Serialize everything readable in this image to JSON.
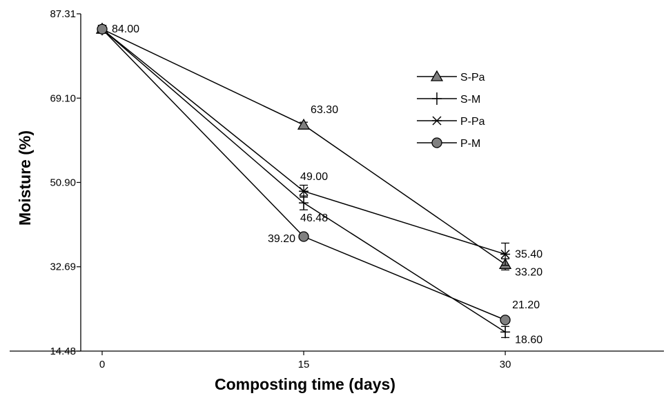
{
  "chart_data": {
    "type": "line",
    "title": "",
    "xlabel": "Composting time (days)",
    "ylabel": "Moisture (%)",
    "x": [
      0,
      15,
      30
    ],
    "x_ticks": [
      "0",
      "15",
      "30"
    ],
    "xlim": [
      -3,
      45
    ],
    "ylim": [
      14.48,
      87.31
    ],
    "y_ticks": [
      "14.48",
      "32.69",
      "50.90",
      "69.10",
      "87.31"
    ],
    "y_tick_values": [
      14.48,
      32.69,
      50.9,
      69.1,
      87.31
    ],
    "grid": false,
    "legend_position": "top-right",
    "series": [
      {
        "name": "S-Pa",
        "marker": "triangle",
        "values": [
          84.0,
          63.3,
          33.2
        ],
        "errors": [
          0.6,
          0.6,
          1.2
        ]
      },
      {
        "name": "S-M",
        "marker": "plus",
        "values": [
          84.0,
          46.48,
          18.6
        ],
        "errors": [
          0.6,
          1.5,
          1.2
        ]
      },
      {
        "name": "P-Pa",
        "marker": "asterisk",
        "values": [
          84.0,
          49.0,
          35.4
        ],
        "errors": [
          0.6,
          1.3,
          2.4
        ]
      },
      {
        "name": "P-M",
        "marker": "circle",
        "values": [
          84.0,
          39.2,
          21.2
        ],
        "errors": [
          0.6,
          0.6,
          0.6
        ]
      }
    ],
    "data_labels": [
      {
        "text": "84.00",
        "x": 0,
        "y": 84.0,
        "anchor": "right"
      },
      {
        "text": "63.30",
        "x": 15,
        "y": 63.3,
        "anchor": "upper-right"
      },
      {
        "text": "49.00",
        "x": 15,
        "y": 49.0,
        "anchor": "above"
      },
      {
        "text": "46.48",
        "x": 15,
        "y": 46.48,
        "anchor": "below"
      },
      {
        "text": "39.20",
        "x": 15,
        "y": 39.2,
        "anchor": "left"
      },
      {
        "text": "35.40",
        "x": 30,
        "y": 35.4,
        "anchor": "right"
      },
      {
        "text": "33.20",
        "x": 30,
        "y": 33.2,
        "anchor": "lower-right"
      },
      {
        "text": "21.20",
        "x": 30,
        "y": 21.2,
        "anchor": "upper-right"
      },
      {
        "text": "18.60",
        "x": 30,
        "y": 18.6,
        "anchor": "lower-right"
      }
    ]
  }
}
